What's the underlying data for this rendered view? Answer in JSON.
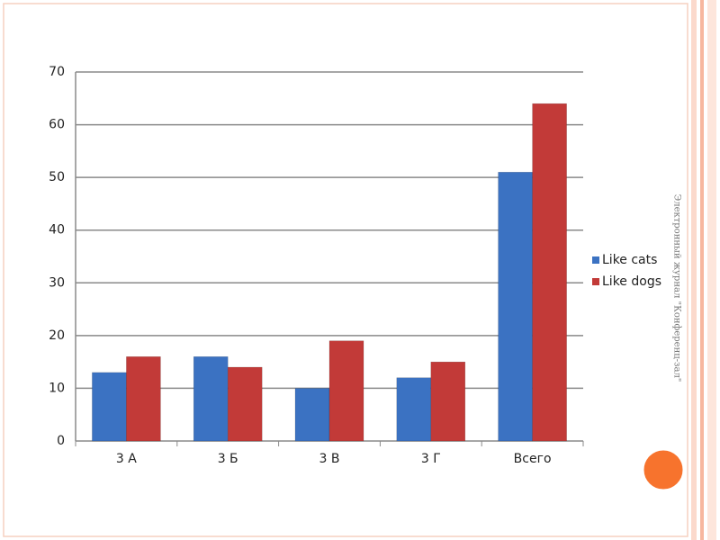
{
  "slide": {
    "side_text": "Электронный журнал \"Конференц-зал\""
  },
  "chart_data": {
    "type": "bar",
    "categories": [
      "3 А",
      "3 Б",
      "3 В",
      "3 Г",
      "Всего"
    ],
    "series": [
      {
        "name": "Like cats",
        "color": "#3b72c2",
        "values": [
          13,
          16,
          10,
          12,
          51
        ]
      },
      {
        "name": "Like dogs",
        "color": "#c23a38",
        "values": [
          16,
          14,
          19,
          15,
          64
        ]
      }
    ],
    "ylim": [
      0,
      70
    ],
    "yticks": [
      0,
      10,
      20,
      30,
      40,
      50,
      60,
      70
    ],
    "grid": true,
    "legend": "right"
  }
}
